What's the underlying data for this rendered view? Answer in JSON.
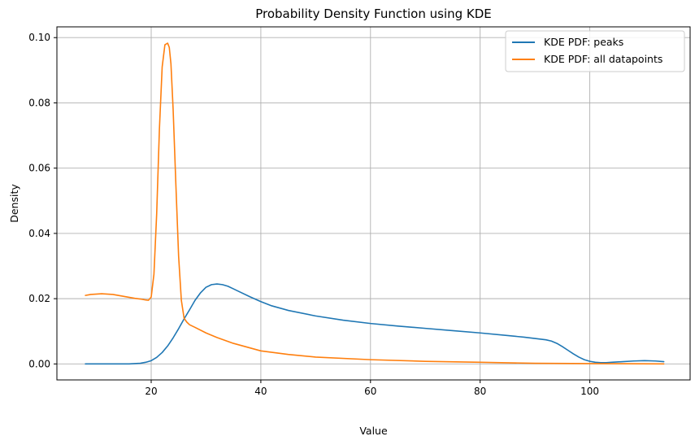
{
  "chart_data": {
    "type": "line",
    "title": "Probability Density Function using KDE",
    "xlabel": "Value",
    "ylabel": "Density",
    "xlim": [
      2.8,
      118.3
    ],
    "ylim": [
      -0.0049,
      0.1033
    ],
    "xticks": [
      20,
      40,
      60,
      80,
      100
    ],
    "yticks": [
      0.0,
      0.02,
      0.04,
      0.06,
      0.08,
      0.1
    ],
    "xtick_labels": [
      "20",
      "40",
      "60",
      "80",
      "100"
    ],
    "ytick_labels": [
      "0.00",
      "0.02",
      "0.04",
      "0.06",
      "0.08",
      "0.10"
    ],
    "grid": true,
    "legend_position": "top-right",
    "series": [
      {
        "name": "KDE PDF: peaks",
        "color": "#1f77b4",
        "x": [
          8,
          12,
          16,
          18,
          19,
          20,
          21,
          22,
          23,
          24,
          25,
          26,
          27,
          28,
          29,
          30,
          31,
          32,
          33,
          34,
          35,
          36,
          38,
          40,
          42,
          45,
          50,
          55,
          60,
          65,
          70,
          75,
          80,
          85,
          88,
          90,
          92,
          93,
          94,
          95,
          96,
          97,
          98,
          99,
          100,
          101,
          102,
          103,
          104,
          106,
          108,
          110,
          112,
          113.5
        ],
        "y": [
          0.0,
          0.0,
          0.0,
          0.0002,
          0.0005,
          0.001,
          0.002,
          0.0035,
          0.0055,
          0.008,
          0.0108,
          0.0138,
          0.0166,
          0.0195,
          0.0218,
          0.0235,
          0.0243,
          0.0245,
          0.0243,
          0.0238,
          0.023,
          0.0222,
          0.0206,
          0.0191,
          0.0178,
          0.0164,
          0.0147,
          0.0134,
          0.0124,
          0.0116,
          0.0109,
          0.0102,
          0.0095,
          0.0087,
          0.0082,
          0.0078,
          0.0074,
          0.007,
          0.0063,
          0.0053,
          0.0042,
          0.0031,
          0.0021,
          0.0013,
          0.0008,
          0.0005,
          0.0004,
          0.0004,
          0.0005,
          0.0007,
          0.0009,
          0.001,
          0.0009,
          0.0007
        ]
      },
      {
        "name": "KDE PDF: all datapoints",
        "color": "#ff7f0e",
        "x": [
          8,
          9,
          11,
          13,
          15,
          17,
          18,
          19,
          19.5,
          20,
          20.5,
          21,
          21.5,
          22,
          22.5,
          23,
          23.3,
          23.6,
          24,
          24.5,
          25,
          25.5,
          26,
          26.5,
          27,
          28,
          30,
          32,
          35,
          40,
          45,
          50,
          60,
          70,
          80,
          90,
          100,
          113.5
        ],
        "y": [
          0.021,
          0.0213,
          0.0215,
          0.0213,
          0.0207,
          0.0201,
          0.0199,
          0.0196,
          0.0195,
          0.0205,
          0.0275,
          0.046,
          0.072,
          0.091,
          0.0978,
          0.0983,
          0.097,
          0.092,
          0.078,
          0.055,
          0.033,
          0.0195,
          0.014,
          0.0128,
          0.012,
          0.0112,
          0.0095,
          0.0081,
          0.0063,
          0.004,
          0.0029,
          0.0021,
          0.0013,
          0.0008,
          0.0005,
          0.0002,
          0.0001,
          0.0
        ]
      }
    ]
  }
}
